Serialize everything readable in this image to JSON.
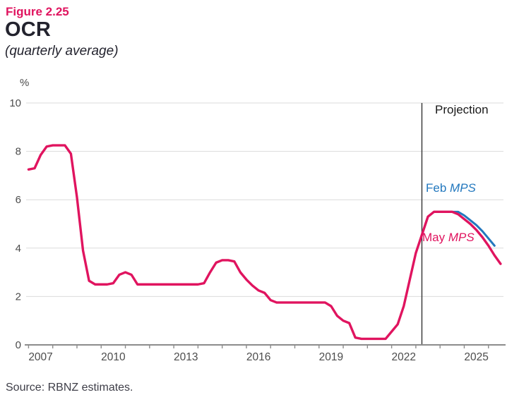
{
  "header": {
    "figure_label": "Figure 2.25",
    "title": "OCR",
    "subtitle": "(quarterly average)"
  },
  "footer": {
    "source": "Source: RBNZ estimates."
  },
  "chart_data": {
    "type": "line",
    "title": "OCR",
    "subtitle": "(quarterly average)",
    "ylabel": "%",
    "xlabel": "",
    "ylim": [
      0,
      10
    ],
    "xlim": [
      2006.9,
      2026.62
    ],
    "grid": "horizontal",
    "legend_position": "inline-annotations",
    "y_ticks": [
      0,
      2,
      4,
      6,
      8,
      10
    ],
    "x_tick_years": [
      2007,
      2008,
      2009,
      2010,
      2011,
      2012,
      2013,
      2014,
      2015,
      2016,
      2017,
      2018,
      2019,
      2020,
      2021,
      2022,
      2023,
      2024,
      2025,
      2026
    ],
    "x_label_years": [
      2007,
      2010,
      2013,
      2016,
      2019,
      2022,
      2025
    ],
    "x_step": 0.25,
    "projection_start": 2023.25,
    "annotations": {
      "projection": "Projection",
      "feb_prefix": "Feb ",
      "feb_italic": "MPS",
      "may_prefix": "May ",
      "may_italic": "MPS"
    },
    "colors": {
      "may_mps": "#E0145F",
      "feb_mps": "#2378BE",
      "gridline": "#DBDBDB",
      "axis": "#8C8C8C",
      "tick_text": "#4C4C4C",
      "divider": "#333333"
    },
    "series": [
      {
        "id": "feb-mps",
        "name": "Feb MPS",
        "color_key": "feb_mps",
        "x_start": 2023.25,
        "values": [
          4.55,
          5.3,
          5.5,
          5.5,
          5.5,
          5.5,
          5.5,
          5.35,
          5.15,
          4.95,
          4.7,
          4.4,
          4.1
        ]
      },
      {
        "id": "may-mps",
        "name": "May MPS",
        "color_key": "may_mps",
        "x_start": 2007.0,
        "values": [
          7.25,
          7.3,
          7.85,
          8.2,
          8.25,
          8.25,
          8.25,
          7.9,
          6.1,
          3.9,
          2.65,
          2.5,
          2.5,
          2.5,
          2.55,
          2.9,
          3.0,
          2.9,
          2.5,
          2.5,
          2.5,
          2.5,
          2.5,
          2.5,
          2.5,
          2.5,
          2.5,
          2.5,
          2.5,
          2.55,
          3.0,
          3.4,
          3.5,
          3.5,
          3.45,
          3.0,
          2.7,
          2.45,
          2.25,
          2.15,
          1.85,
          1.75,
          1.75,
          1.75,
          1.75,
          1.75,
          1.75,
          1.75,
          1.75,
          1.75,
          1.6,
          1.2,
          1.0,
          0.9,
          0.3,
          0.25,
          0.25,
          0.25,
          0.25,
          0.25,
          0.55,
          0.85,
          1.6,
          2.7,
          3.8,
          4.55,
          5.3,
          5.5,
          5.5,
          5.5,
          5.5,
          5.4,
          5.2,
          5.0,
          4.75,
          4.45,
          4.1,
          3.7,
          3.35
        ]
      }
    ]
  }
}
